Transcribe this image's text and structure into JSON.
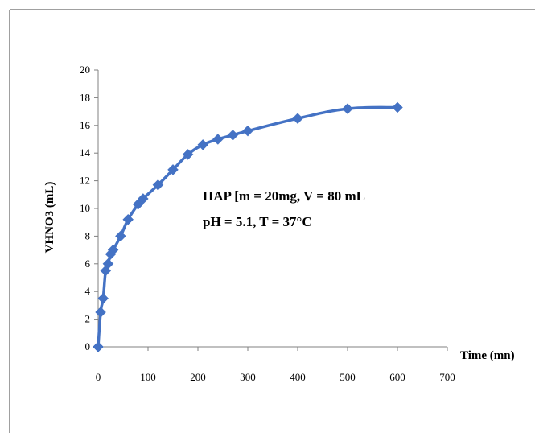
{
  "chart_data": {
    "type": "line",
    "title": "",
    "xlabel": "Time (mn)",
    "ylabel": "VHNO3 (mL)",
    "xlim": [
      0,
      700
    ],
    "ylim": [
      0,
      20
    ],
    "x_ticks": [
      0,
      100,
      200,
      300,
      400,
      500,
      600,
      700
    ],
    "y_ticks": [
      0,
      2,
      4,
      6,
      8,
      10,
      12,
      14,
      16,
      18,
      20
    ],
    "grid": false,
    "legend": "none",
    "annotations": [
      "HAP [m = 20mg, V = 80 mL",
      "pH = 5.1,  T = 37°C"
    ],
    "series": [
      {
        "color": "#4472C4",
        "marker": "diamond",
        "x": [
          0,
          5,
          10,
          15,
          20,
          25,
          30,
          45,
          60,
          80,
          90,
          120,
          150,
          180,
          210,
          240,
          270,
          300,
          400,
          500,
          600
        ],
        "y": [
          0,
          2.5,
          3.5,
          5.5,
          6.0,
          6.7,
          7.0,
          8.0,
          9.2,
          10.3,
          10.7,
          11.7,
          12.8,
          13.9,
          14.6,
          15.0,
          15.3,
          15.6,
          16.5,
          17.2,
          17.3
        ]
      }
    ]
  }
}
